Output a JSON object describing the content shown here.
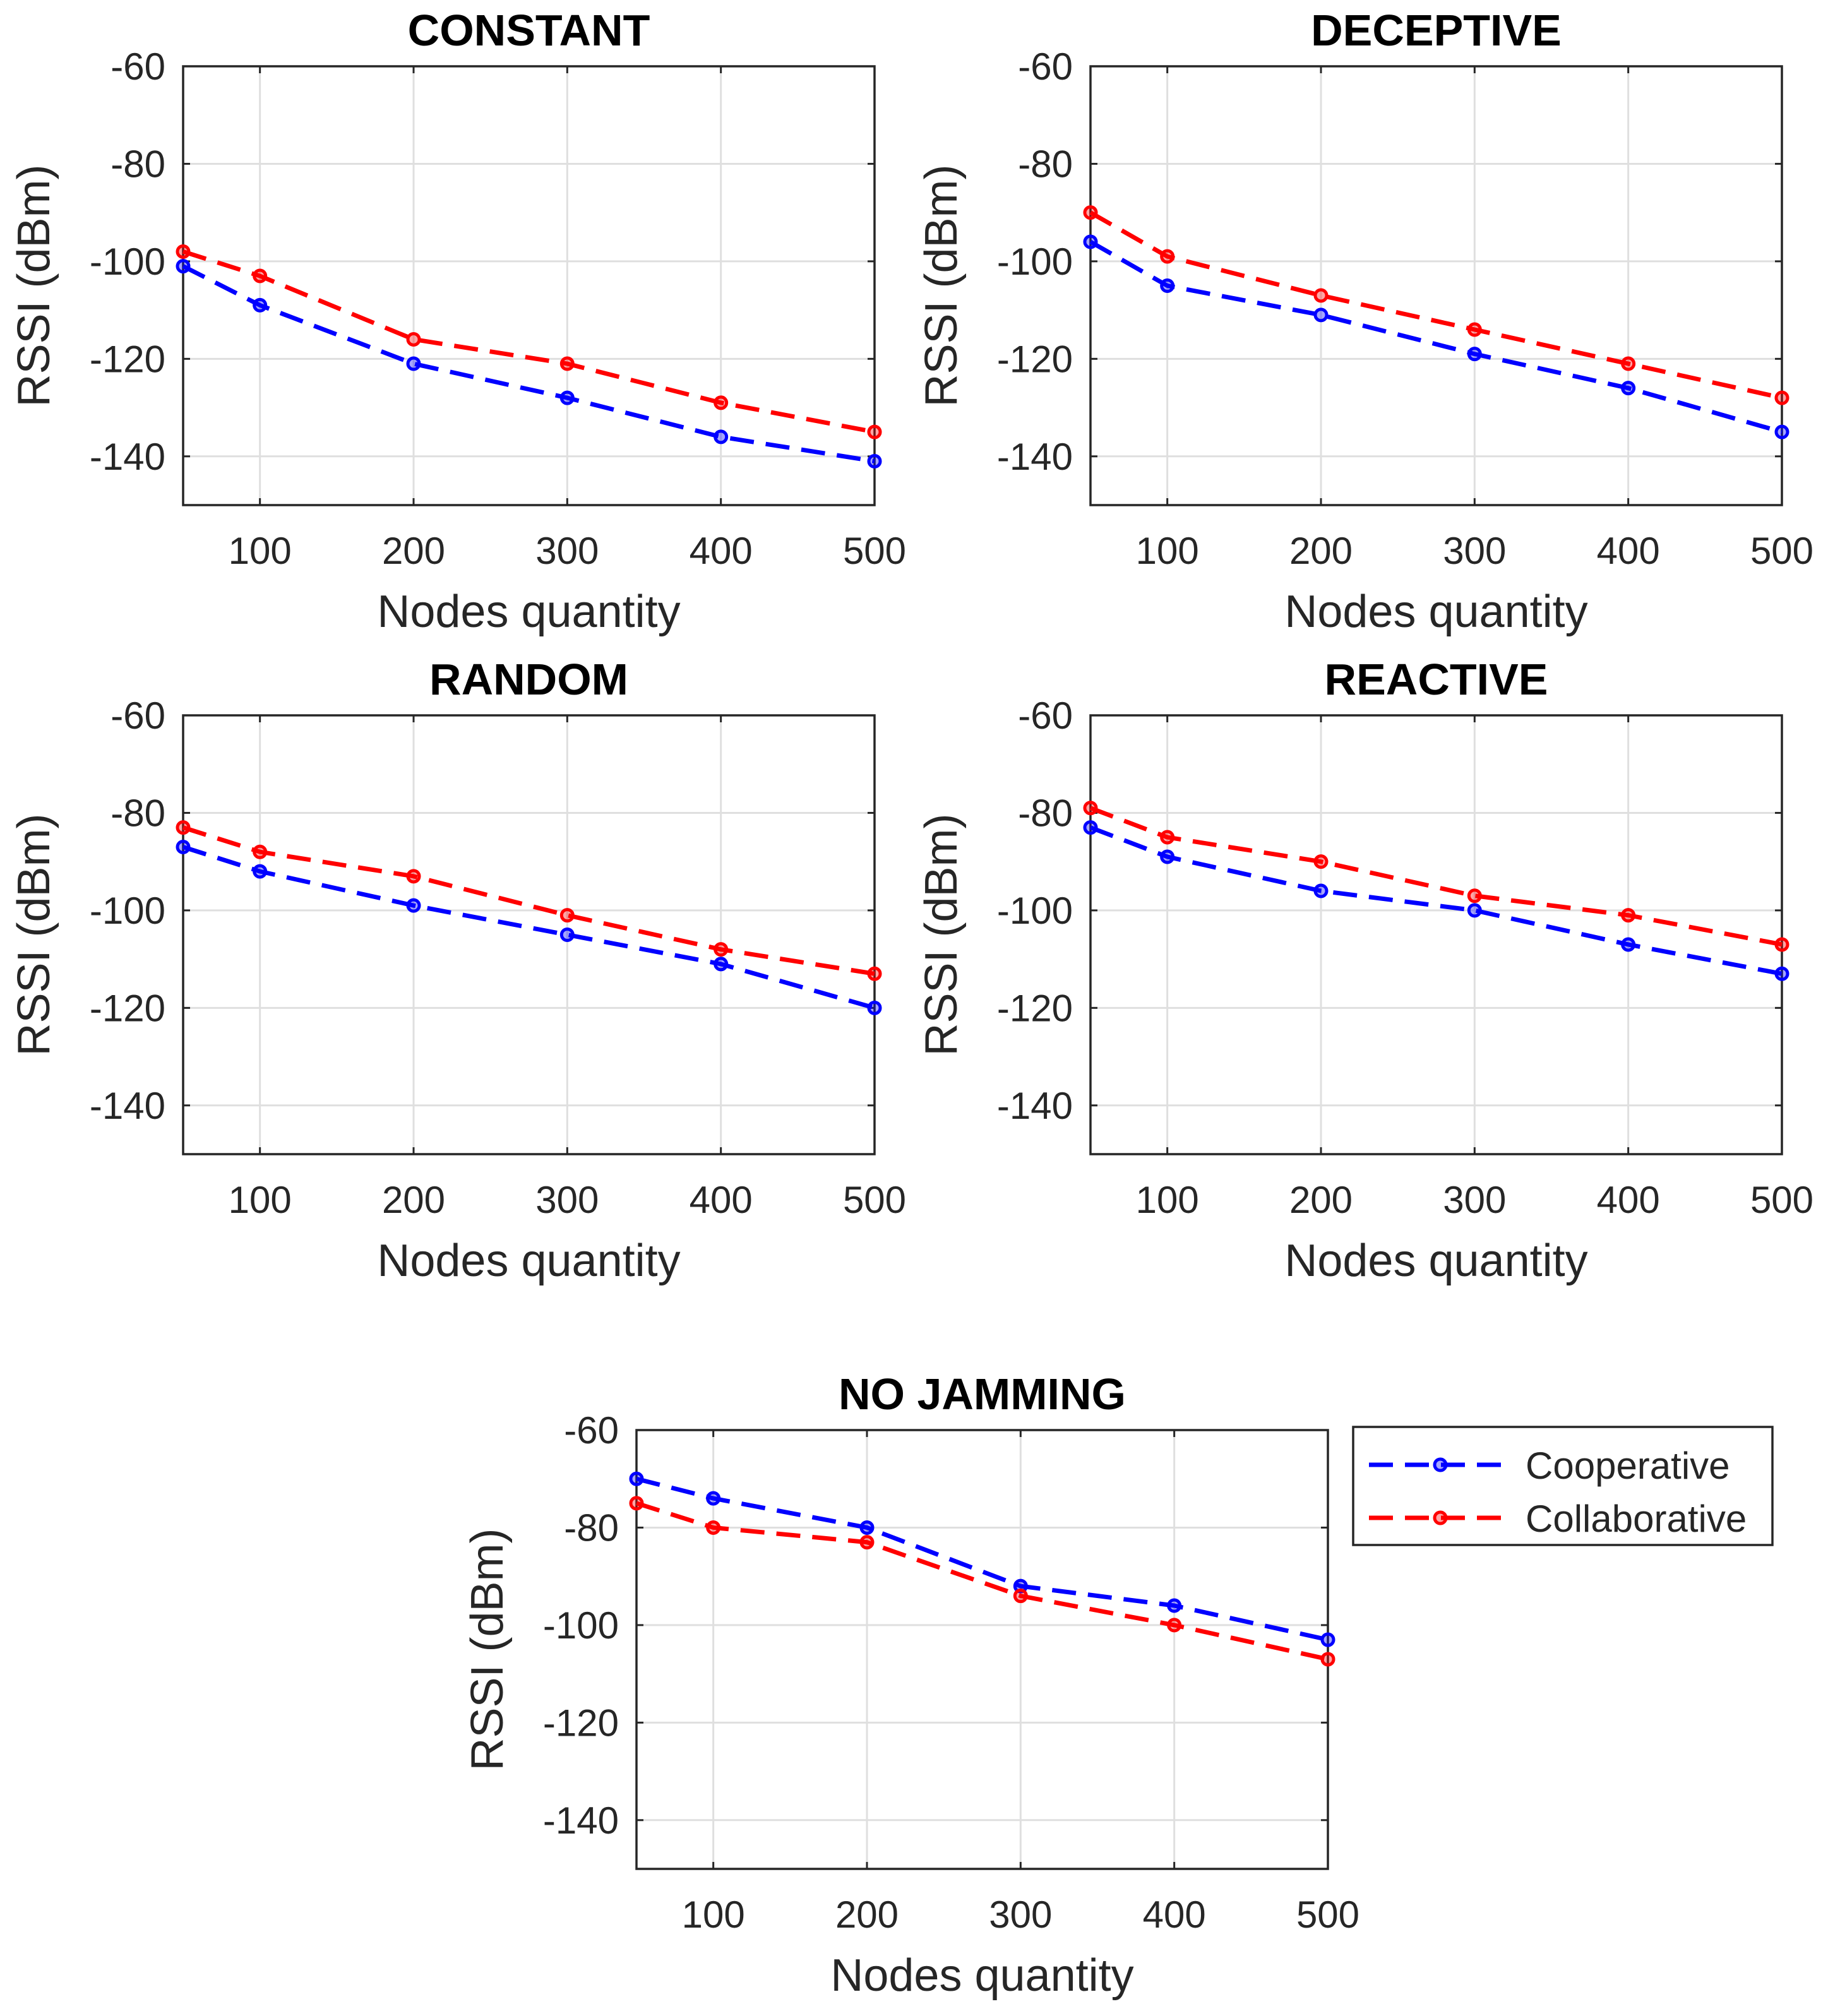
{
  "chart_data": [
    {
      "type": "line",
      "title": "CONSTANT",
      "xlabel": "Nodes quantity",
      "ylabel": "RSSI (dBm)",
      "xlim": [
        50,
        500
      ],
      "ylim": [
        -150,
        -60
      ],
      "xticks": [
        100,
        200,
        300,
        400,
        500
      ],
      "yticks": [
        -60,
        -80,
        -100,
        -120,
        -140
      ],
      "grid": true,
      "x": [
        50,
        100,
        200,
        300,
        400,
        500
      ],
      "series": [
        {
          "name": "Cooperative",
          "color": "#0000ff",
          "values": [
            -101,
            -109,
            -121,
            -128,
            -136,
            -141
          ]
        },
        {
          "name": "Collaborative",
          "color": "#ff0000",
          "values": [
            -98,
            -103,
            -116,
            -121,
            -129,
            -135
          ]
        }
      ]
    },
    {
      "type": "line",
      "title": "DECEPTIVE",
      "xlabel": "Nodes quantity",
      "ylabel": "RSSI (dBm)",
      "xlim": [
        50,
        500
      ],
      "ylim": [
        -150,
        -60
      ],
      "xticks": [
        100,
        200,
        300,
        400,
        500
      ],
      "yticks": [
        -60,
        -80,
        -100,
        -120,
        -140
      ],
      "grid": true,
      "x": [
        50,
        100,
        200,
        300,
        400,
        500
      ],
      "series": [
        {
          "name": "Cooperative",
          "color": "#0000ff",
          "values": [
            -96,
            -105,
            -111,
            -119,
            -126,
            -135
          ]
        },
        {
          "name": "Collaborative",
          "color": "#ff0000",
          "values": [
            -90,
            -99,
            -107,
            -114,
            -121,
            -128
          ]
        }
      ]
    },
    {
      "type": "line",
      "title": "RANDOM",
      "xlabel": "Nodes quantity",
      "ylabel": "RSSI (dBm)",
      "xlim": [
        50,
        500
      ],
      "ylim": [
        -150,
        -60
      ],
      "xticks": [
        100,
        200,
        300,
        400,
        500
      ],
      "yticks": [
        -60,
        -80,
        -100,
        -120,
        -140
      ],
      "grid": true,
      "x": [
        50,
        100,
        200,
        300,
        400,
        500
      ],
      "series": [
        {
          "name": "Cooperative",
          "color": "#0000ff",
          "values": [
            -87,
            -92,
            -99,
            -105,
            -111,
            -120
          ]
        },
        {
          "name": "Collaborative",
          "color": "#ff0000",
          "values": [
            -83,
            -88,
            -93,
            -101,
            -108,
            -113
          ]
        }
      ]
    },
    {
      "type": "line",
      "title": "REACTIVE",
      "xlabel": "Nodes quantity",
      "ylabel": "RSSI (dBm)",
      "xlim": [
        50,
        500
      ],
      "ylim": [
        -150,
        -60
      ],
      "xticks": [
        100,
        200,
        300,
        400,
        500
      ],
      "yticks": [
        -60,
        -80,
        -100,
        -120,
        -140
      ],
      "grid": true,
      "x": [
        50,
        100,
        200,
        300,
        400,
        500
      ],
      "series": [
        {
          "name": "Cooperative",
          "color": "#0000ff",
          "values": [
            -83,
            -89,
            -96,
            -100,
            -107,
            -113
          ]
        },
        {
          "name": "Collaborative",
          "color": "#ff0000",
          "values": [
            -79,
            -85,
            -90,
            -97,
            -101,
            -107
          ]
        }
      ]
    },
    {
      "type": "line",
      "title": "NO JAMMING",
      "xlabel": "Nodes quantity",
      "ylabel": "RSSI (dBm)",
      "xlim": [
        50,
        500
      ],
      "ylim": [
        -150,
        -60
      ],
      "xticks": [
        100,
        200,
        300,
        400,
        500
      ],
      "yticks": [
        -60,
        -80,
        -100,
        -120,
        -140
      ],
      "grid": true,
      "legend": "outside-right",
      "x": [
        50,
        100,
        200,
        300,
        400,
        500
      ],
      "series": [
        {
          "name": "Cooperative",
          "color": "#0000ff",
          "values": [
            -70,
            -74,
            -80,
            -92,
            -96,
            -103
          ]
        },
        {
          "name": "Collaborative",
          "color": "#ff0000",
          "values": [
            -75,
            -80,
            -83,
            -94,
            -100,
            -107
          ]
        }
      ]
    }
  ],
  "legend": {
    "entries": [
      {
        "label": "Cooperative",
        "color": "#0000ff"
      },
      {
        "label": "Collaborative",
        "color": "#ff0000"
      }
    ]
  }
}
